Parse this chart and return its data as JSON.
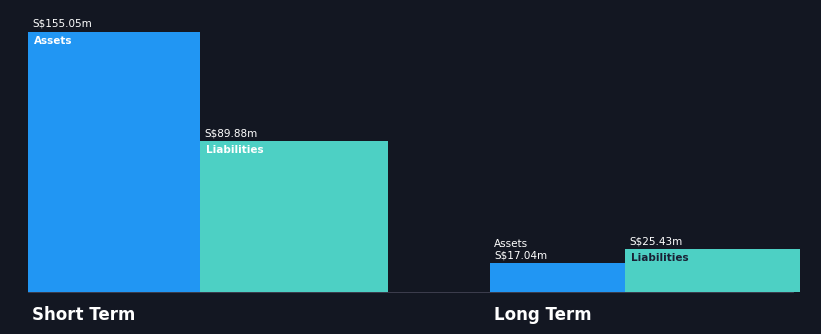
{
  "background_color": "#131722",
  "short_term": {
    "assets_value": 155.05,
    "liabilities_value": 89.88,
    "assets_label": "Assets",
    "liabilities_label": "Liabilities",
    "assets_value_label": "S$155.05m",
    "liabilities_value_label": "S$89.88m",
    "group_label": "Short Term"
  },
  "long_term": {
    "assets_value": 17.04,
    "liabilities_value": 25.43,
    "assets_label": "Assets",
    "liabilities_label": "Liabilities",
    "assets_value_label": "S$17.04m",
    "liabilities_value_label": "S$25.43m",
    "group_label": "Long Term"
  },
  "assets_color": "#2196f3",
  "liabilities_color": "#4dd0c4",
  "text_color": "#ffffff",
  "label_fontsize": 7.5,
  "value_fontsize": 7.5,
  "group_label_fontsize": 12,
  "max_value": 155.05,
  "bar_label_color": "#cccccc",
  "liabilities_label_color": "#1a2035"
}
